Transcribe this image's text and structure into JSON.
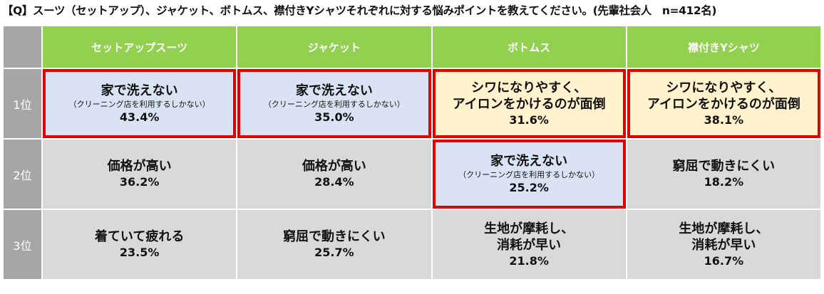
{
  "title": "【Q】スーツ（セットアップ）、ジャケット、ボトムス、襟付きYシャツそれぞれに対する悩みポイントを教えてください。(先輩社会人　n=412名)",
  "colors": {
    "header_green": "#92d050",
    "rank_gray": "#a6a6a6",
    "cell_gray": "#d9d9d9",
    "highlight_blue": "#dae3f3",
    "highlight_peach": "#fff2cc",
    "highlight_border": "#e00000"
  },
  "chart_data": {
    "type": "table",
    "columns": [
      "セットアップスーツ",
      "ジャケット",
      "ボトムス",
      "襟付きYシャツ"
    ],
    "rows": [
      {
        "rank": "1位",
        "cells": [
          {
            "main": "家で洗えない",
            "sub": "（クリーニング店を利用するしかない）",
            "pct": "43.4%",
            "value": 43.4,
            "bg": "blue",
            "highlight": true
          },
          {
            "main": "家で洗えない",
            "sub": "（クリーニング店を利用するしかない）",
            "pct": "35.0%",
            "value": 35.0,
            "bg": "blue",
            "highlight": true
          },
          {
            "main": "シワになりやすく、\nアイロンをかけるのが面倒",
            "sub": "",
            "pct": "31.6%",
            "value": 31.6,
            "bg": "peach",
            "highlight": true
          },
          {
            "main": "シワになりやすく、\nアイロンをかけるのが面倒",
            "sub": "",
            "pct": "38.1%",
            "value": 38.1,
            "bg": "peach",
            "highlight": true
          }
        ]
      },
      {
        "rank": "2位",
        "cells": [
          {
            "main": "価格が高い",
            "sub": "",
            "pct": "36.2%",
            "value": 36.2,
            "bg": "gray",
            "highlight": false
          },
          {
            "main": "価格が高い",
            "sub": "",
            "pct": "28.4%",
            "value": 28.4,
            "bg": "gray",
            "highlight": false
          },
          {
            "main": "家で洗えない",
            "sub": "（クリーニング店を利用するしかない）",
            "pct": "25.2%",
            "value": 25.2,
            "bg": "blue",
            "highlight": true
          },
          {
            "main": "窮屈で動きにくい",
            "sub": "",
            "pct": "18.2%",
            "value": 18.2,
            "bg": "gray",
            "highlight": false
          }
        ]
      },
      {
        "rank": "3位",
        "cells": [
          {
            "main": "着ていて疲れる",
            "sub": "",
            "pct": "23.5%",
            "value": 23.5,
            "bg": "gray",
            "highlight": false
          },
          {
            "main": "窮屈で動きにくい",
            "sub": "",
            "pct": "25.7%",
            "value": 25.7,
            "bg": "gray",
            "highlight": false
          },
          {
            "main": "生地が摩耗し、\n消耗が早い",
            "sub": "",
            "pct": "21.8%",
            "value": 21.8,
            "bg": "gray",
            "highlight": false
          },
          {
            "main": "生地が摩耗し、\n消耗が早い",
            "sub": "",
            "pct": "16.7%",
            "value": 16.7,
            "bg": "gray",
            "highlight": false
          }
        ]
      }
    ]
  }
}
